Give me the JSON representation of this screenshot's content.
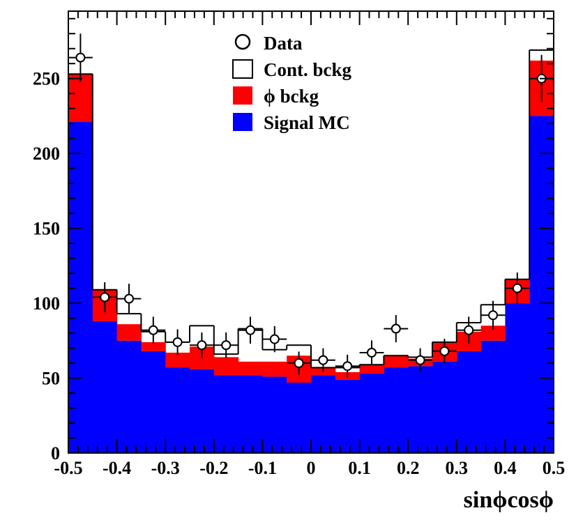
{
  "chart_data": {
    "type": "bar",
    "stacked": true,
    "xlabel": "sinϕcosϕ",
    "ylabel": "",
    "title": "",
    "xlim": [
      -0.5,
      0.5
    ],
    "ylim": [
      0,
      295
    ],
    "x_ticks": [
      "-0.5",
      "-0.4",
      "-0.3",
      "-0.2",
      "-0.1",
      "0",
      "0.1",
      "0.2",
      "0.3",
      "0.4",
      "0.5"
    ],
    "y_ticks": [
      "0",
      "50",
      "100",
      "150",
      "200",
      "250"
    ],
    "grid": false,
    "legend_position": "top-center",
    "bin_edges": [
      -0.5,
      -0.45,
      -0.4,
      -0.35,
      -0.3,
      -0.25,
      -0.2,
      -0.15,
      -0.1,
      -0.05,
      0.0,
      0.05,
      0.1,
      0.15,
      0.2,
      0.25,
      0.3,
      0.35,
      0.4,
      0.45,
      0.5
    ],
    "series": [
      {
        "name": "Signal MC",
        "color": "#0000ff",
        "values": [
          221,
          88,
          75,
          68,
          57,
          56,
          52,
          52,
          51,
          47,
          52,
          49,
          53,
          57,
          58,
          61,
          68,
          75,
          100,
          225
        ]
      },
      {
        "name": "ϕ bckg",
        "color": "#ff0000",
        "values": [
          32,
          21,
          11,
          6,
          10,
          15,
          12,
          9,
          10,
          18,
          5,
          5,
          6,
          8,
          5,
          13,
          13,
          10,
          16,
          37
        ]
      },
      {
        "name": "Cont. bckg",
        "color": "#ffffff",
        "values": [
          0,
          0,
          7,
          7,
          7,
          14,
          2,
          22,
          8,
          7,
          0,
          3,
          0,
          0,
          1,
          0,
          6,
          14,
          0,
          7
        ]
      }
    ],
    "data_points": {
      "name": "Data",
      "x": [
        -0.475,
        -0.425,
        -0.375,
        -0.325,
        -0.275,
        -0.225,
        -0.175,
        -0.125,
        -0.075,
        -0.025,
        0.025,
        0.075,
        0.125,
        0.175,
        0.225,
        0.275,
        0.325,
        0.375,
        0.425,
        0.475
      ],
      "y": [
        264,
        104,
        103,
        82,
        74,
        72,
        72,
        82,
        76,
        60,
        62,
        58,
        67,
        83,
        62,
        68,
        82,
        92,
        110,
        250
      ],
      "yerr": [
        16,
        10,
        10,
        9,
        8.6,
        8.5,
        8.5,
        9,
        8.7,
        7.7,
        7.9,
        7.6,
        8.2,
        9.1,
        7.9,
        8.2,
        9,
        9.6,
        10.5,
        15.8
      ]
    },
    "legend": [
      {
        "label": "Data",
        "marker": "open-circle"
      },
      {
        "label": "Cont. bckg",
        "marker": "open-box"
      },
      {
        "label": "ϕ bckg",
        "marker": "red-box"
      },
      {
        "label": "Signal MC",
        "marker": "blue-box"
      }
    ]
  }
}
